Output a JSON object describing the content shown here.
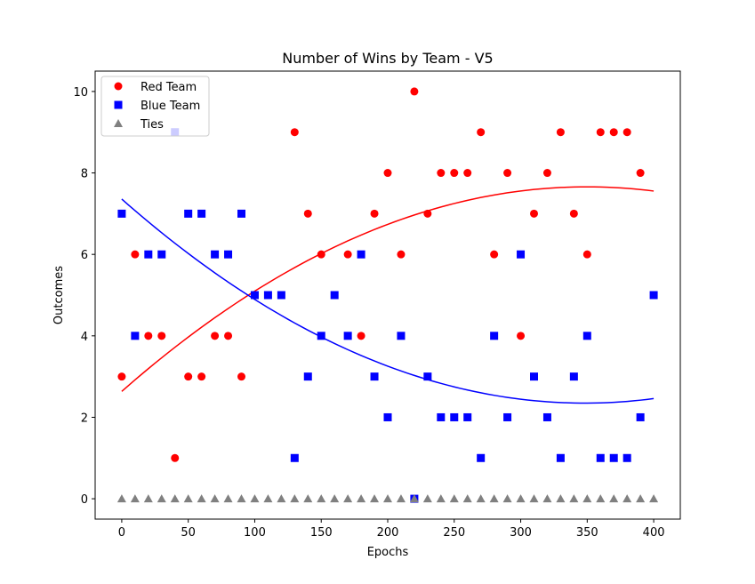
{
  "chart_data": {
    "type": "scatter",
    "title": "Number of Wins by Team - V5",
    "xlabel": "Epochs",
    "ylabel": "Outcomes",
    "xlim": [
      -20,
      420
    ],
    "ylim": [
      -0.5,
      10.5
    ],
    "xticks": [
      0,
      50,
      100,
      150,
      200,
      250,
      300,
      350,
      400
    ],
    "yticks": [
      0,
      2,
      4,
      6,
      8,
      10
    ],
    "legend_position": "top-left",
    "grid": false,
    "series": [
      {
        "name": "Red Team",
        "marker": "circle",
        "color": "#ff0000",
        "x": [
          0,
          10,
          20,
          30,
          40,
          50,
          60,
          70,
          80,
          90,
          130,
          140,
          150,
          170,
          180,
          190,
          200,
          210,
          220,
          230,
          240,
          250,
          260,
          270,
          280,
          290,
          300,
          310,
          320,
          330,
          340,
          350,
          360,
          370,
          380,
          390
        ],
        "y": [
          3,
          6,
          4,
          4,
          1,
          3,
          3,
          4,
          4,
          3,
          9,
          7,
          6,
          6,
          4,
          7,
          8,
          6,
          10,
          7,
          8,
          8,
          8,
          9,
          6,
          8,
          4,
          7,
          8,
          9,
          7,
          6,
          9,
          9,
          9,
          8
        ]
      },
      {
        "name": "Blue Team",
        "marker": "square",
        "color": "#0000ff",
        "x": [
          0,
          10,
          20,
          30,
          40,
          50,
          60,
          70,
          80,
          90,
          100,
          110,
          120,
          130,
          140,
          150,
          160,
          170,
          180,
          190,
          200,
          210,
          220,
          230,
          240,
          250,
          260,
          270,
          280,
          290,
          300,
          310,
          320,
          330,
          340,
          350,
          360,
          370,
          380,
          390,
          400
        ],
        "y": [
          7,
          4,
          6,
          6,
          9,
          7,
          7,
          6,
          6,
          7,
          5,
          5,
          5,
          1,
          3,
          4,
          5,
          4,
          6,
          3,
          2,
          4,
          0,
          3,
          2,
          2,
          2,
          1,
          4,
          2,
          6,
          3,
          2,
          1,
          3,
          4,
          1,
          1,
          1,
          2,
          5
        ]
      },
      {
        "name": "Ties",
        "marker": "triangle",
        "color": "#808080",
        "x": [
          0,
          10,
          20,
          30,
          40,
          50,
          60,
          70,
          80,
          90,
          100,
          110,
          120,
          130,
          140,
          150,
          160,
          170,
          180,
          190,
          200,
          210,
          220,
          230,
          240,
          250,
          260,
          270,
          280,
          290,
          300,
          310,
          320,
          330,
          340,
          350,
          360,
          370,
          380,
          390,
          400
        ],
        "y": [
          0,
          0,
          0,
          0,
          0,
          0,
          0,
          0,
          0,
          0,
          0,
          0,
          0,
          0,
          0,
          0,
          0,
          0,
          0,
          0,
          0,
          0,
          0,
          0,
          0,
          0,
          0,
          0,
          0,
          0,
          0,
          0,
          0,
          0,
          0,
          0,
          0,
          0,
          0,
          0,
          0
        ]
      }
    ],
    "trend_lines": [
      {
        "color": "#ff0000",
        "x": [
          0,
          50,
          100,
          150,
          200,
          250,
          300,
          350,
          400
        ],
        "y": [
          2.62,
          3.99,
          5.11,
          6.01,
          6.73,
          7.24,
          7.56,
          7.67,
          7.55
        ]
      },
      {
        "color": "#0000ff",
        "x": [
          0,
          50,
          100,
          150,
          200,
          250,
          300,
          350,
          400
        ],
        "y": [
          7.38,
          6.0,
          4.87,
          3.98,
          3.27,
          2.76,
          2.44,
          2.34,
          2.46
        ]
      }
    ]
  }
}
